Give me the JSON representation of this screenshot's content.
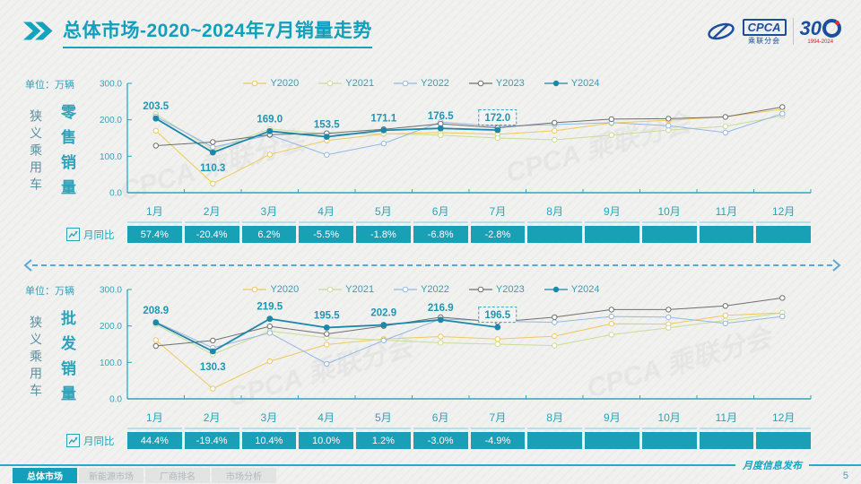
{
  "header": {
    "title": "总体市场-2020~2024年7月销量走势",
    "logo": {
      "cpca": "CPCA",
      "sub": "乘联分会",
      "anniversary": "30",
      "years": "1994-2024"
    }
  },
  "watermark": "CPCA 乘联分会",
  "colors": {
    "primary": "#14A0BA",
    "axis": "#2FA6BB",
    "data_label": "#1F96B3",
    "yoy_bg": "#199FB6",
    "divider": "#57A8D8",
    "y2020": "#F0C95C",
    "y2021": "#CBDC96",
    "y2022": "#94B9E2",
    "y2023": "#6F6F6F",
    "y2024": "#1B87A9"
  },
  "chart_data": [
    {
      "type": "line",
      "metric": "零售销量",
      "vehicle_type": "狭义乘用车",
      "unit_label": "单位：万辆",
      "categories": [
        "1月",
        "2月",
        "3月",
        "4月",
        "5月",
        "6月",
        "7月",
        "8月",
        "9月",
        "10月",
        "11月",
        "12月"
      ],
      "ylim": [
        0,
        300
      ],
      "yticks": [
        0,
        100,
        200,
        300
      ],
      "legend_position": "top",
      "grid": false,
      "series": [
        {
          "name": "Y2020",
          "color": "#F0C95C",
          "estimated": true,
          "values": [
            170,
            25,
            105,
            143,
            161,
            165,
            160,
            170,
            191,
            199,
            208,
            229
          ]
        },
        {
          "name": "Y2021",
          "color": "#CBDC96",
          "estimated": true,
          "values": [
            216,
            118,
            175,
            161,
            162,
            158,
            150,
            145,
            158,
            172,
            182,
            211
          ]
        },
        {
          "name": "Y2022",
          "color": "#94B9E2",
          "estimated": true,
          "values": [
            209,
            125,
            158,
            104,
            135,
            194,
            182,
            187,
            192,
            184,
            165,
            217
          ]
        },
        {
          "name": "Y2023",
          "color": "#6F6F6F",
          "estimated": true,
          "values": [
            129,
            139,
            159,
            163,
            174,
            189,
            178,
            192,
            202,
            203,
            208,
            235
          ]
        },
        {
          "name": "Y2024",
          "color": "#1B87A9",
          "emphasis": true,
          "show_labels": true,
          "values": [
            203.5,
            110.3,
            169.0,
            153.5,
            171.1,
            176.5,
            172.0
          ]
        }
      ],
      "yoy_label": "月同比",
      "yoy_values": [
        "57.4%",
        "-20.4%",
        "6.2%",
        "-5.5%",
        "-1.8%",
        "-6.8%",
        "-2.8%",
        "",
        "",
        "",
        "",
        ""
      ]
    },
    {
      "type": "line",
      "metric": "批发销量",
      "vehicle_type": "狭义乘用车",
      "unit_label": "单位：万辆",
      "categories": [
        "1月",
        "2月",
        "3月",
        "4月",
        "5月",
        "6月",
        "7月",
        "8月",
        "9月",
        "10月",
        "11月",
        "12月"
      ],
      "ylim": [
        0,
        300
      ],
      "yticks": [
        0,
        100,
        200,
        300
      ],
      "legend_position": "top",
      "grid": false,
      "series": [
        {
          "name": "Y2020",
          "color": "#F0C95C",
          "estimated": true,
          "values": [
            161,
            28,
            103,
            149,
            164,
            171,
            164,
            172,
            206,
            205,
            229,
            236
          ]
        },
        {
          "name": "Y2021",
          "color": "#CBDC96",
          "estimated": true,
          "values": [
            204,
            122,
            186,
            168,
            161,
            154,
            150,
            146,
            176,
            195,
            215,
            236
          ]
        },
        {
          "name": "Y2022",
          "color": "#94B9E2",
          "estimated": true,
          "values": [
            211,
            140,
            181,
            96,
            160,
            219,
            213,
            210,
            226,
            224,
            207,
            226
          ]
        },
        {
          "name": "Y2023",
          "color": "#6F6F6F",
          "estimated": true,
          "values": [
            145,
            160,
            199,
            178,
            200,
            224,
            211,
            224,
            245,
            245,
            255,
            277
          ]
        },
        {
          "name": "Y2024",
          "color": "#1B87A9",
          "emphasis": true,
          "show_labels": true,
          "values": [
            208.9,
            130.3,
            219.5,
            195.5,
            202.9,
            216.9,
            196.5
          ]
        }
      ],
      "yoy_label": "月同比",
      "yoy_values": [
        "44.4%",
        "-19.4%",
        "10.4%",
        "10.0%",
        "1.2%",
        "-3.0%",
        "-4.9%",
        "",
        "",
        "",
        "",
        ""
      ]
    }
  ],
  "footer": {
    "tabs": [
      "总体市场",
      "新能源市场",
      "厂商排名",
      "市场分析"
    ],
    "active_tab": 0,
    "release_label": "月度信息发布",
    "page": "5"
  }
}
